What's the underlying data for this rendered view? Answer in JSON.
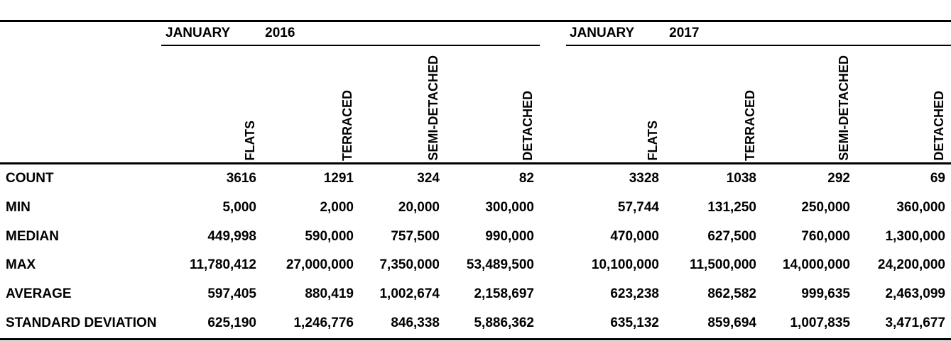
{
  "table": {
    "sections": [
      {
        "month": "JANUARY",
        "year": "2016",
        "columns": [
          "FLATS",
          "TERRACED",
          "SEMI-DETACHED",
          "DETACHED"
        ]
      },
      {
        "month": "JANUARY",
        "year": "2017",
        "columns": [
          "FLATS",
          "TERRACED",
          "SEMI-DETACHED",
          "DETACHED"
        ]
      }
    ],
    "rows": [
      {
        "label": "COUNT",
        "y2016": [
          "3616",
          "1291",
          "324",
          "82"
        ],
        "y2017": [
          "3328",
          "1038",
          "292",
          "69"
        ]
      },
      {
        "label": "MIN",
        "y2016": [
          "5,000",
          "2,000",
          "20,000",
          "300,000"
        ],
        "y2017": [
          "57,744",
          "131,250",
          "250,000",
          "360,000"
        ]
      },
      {
        "label": "MEDIAN",
        "y2016": [
          "449,998",
          "590,000",
          "757,500",
          "990,000"
        ],
        "y2017": [
          "470,000",
          "627,500",
          "760,000",
          "1,300,000"
        ]
      },
      {
        "label": "MAX",
        "y2016": [
          "11,780,412",
          "27,000,000",
          "7,350,000",
          "53,489,500"
        ],
        "y2017": [
          "10,100,000",
          "11,500,000",
          "14,000,000",
          "24,200,000"
        ]
      },
      {
        "label": "AVERAGE",
        "y2016": [
          "597,405",
          "880,419",
          "1,002,674",
          "2,158,697"
        ],
        "y2017": [
          "623,238",
          "862,582",
          "999,635",
          "2,463,099"
        ]
      },
      {
        "label": "STANDARD DEVIATION",
        "y2016": [
          "625,190",
          "1,246,776",
          "846,338",
          "5,886,362"
        ],
        "y2017": [
          "635,132",
          "859,694",
          "1,007,835",
          "3,471,677"
        ]
      }
    ]
  },
  "chart_data": {
    "type": "table",
    "groups": [
      "JANUARY 2016",
      "JANUARY 2017"
    ],
    "columns": [
      "FLATS",
      "TERRACED",
      "SEMI-DETACHED",
      "DETACHED"
    ],
    "metrics": [
      "COUNT",
      "MIN",
      "MEDIAN",
      "MAX",
      "AVERAGE",
      "STANDARD DEVIATION"
    ],
    "values": {
      "JANUARY 2016": {
        "COUNT": [
          3616,
          1291,
          324,
          82
        ],
        "MIN": [
          5000,
          2000,
          20000,
          300000
        ],
        "MEDIAN": [
          449998,
          590000,
          757500,
          990000
        ],
        "MAX": [
          11780412,
          27000000,
          7350000,
          53489500
        ],
        "AVERAGE": [
          597405,
          880419,
          1002674,
          2158697
        ],
        "STANDARD DEVIATION": [
          625190,
          1246776,
          846338,
          5886362
        ]
      },
      "JANUARY 2017": {
        "COUNT": [
          3328,
          1038,
          292,
          69
        ],
        "MIN": [
          57744,
          131250,
          250000,
          360000
        ],
        "MEDIAN": [
          470000,
          627500,
          760000,
          1300000
        ],
        "MAX": [
          10100000,
          11500000,
          14000000,
          24200000
        ],
        "AVERAGE": [
          623238,
          862582,
          999635,
          2463099
        ],
        "STANDARD DEVIATION": [
          635132,
          859694,
          1007835,
          3471677
        ]
      }
    },
    "colors": {
      "text": "#000000",
      "rules": "#000000",
      "background": "#ffffff"
    }
  }
}
